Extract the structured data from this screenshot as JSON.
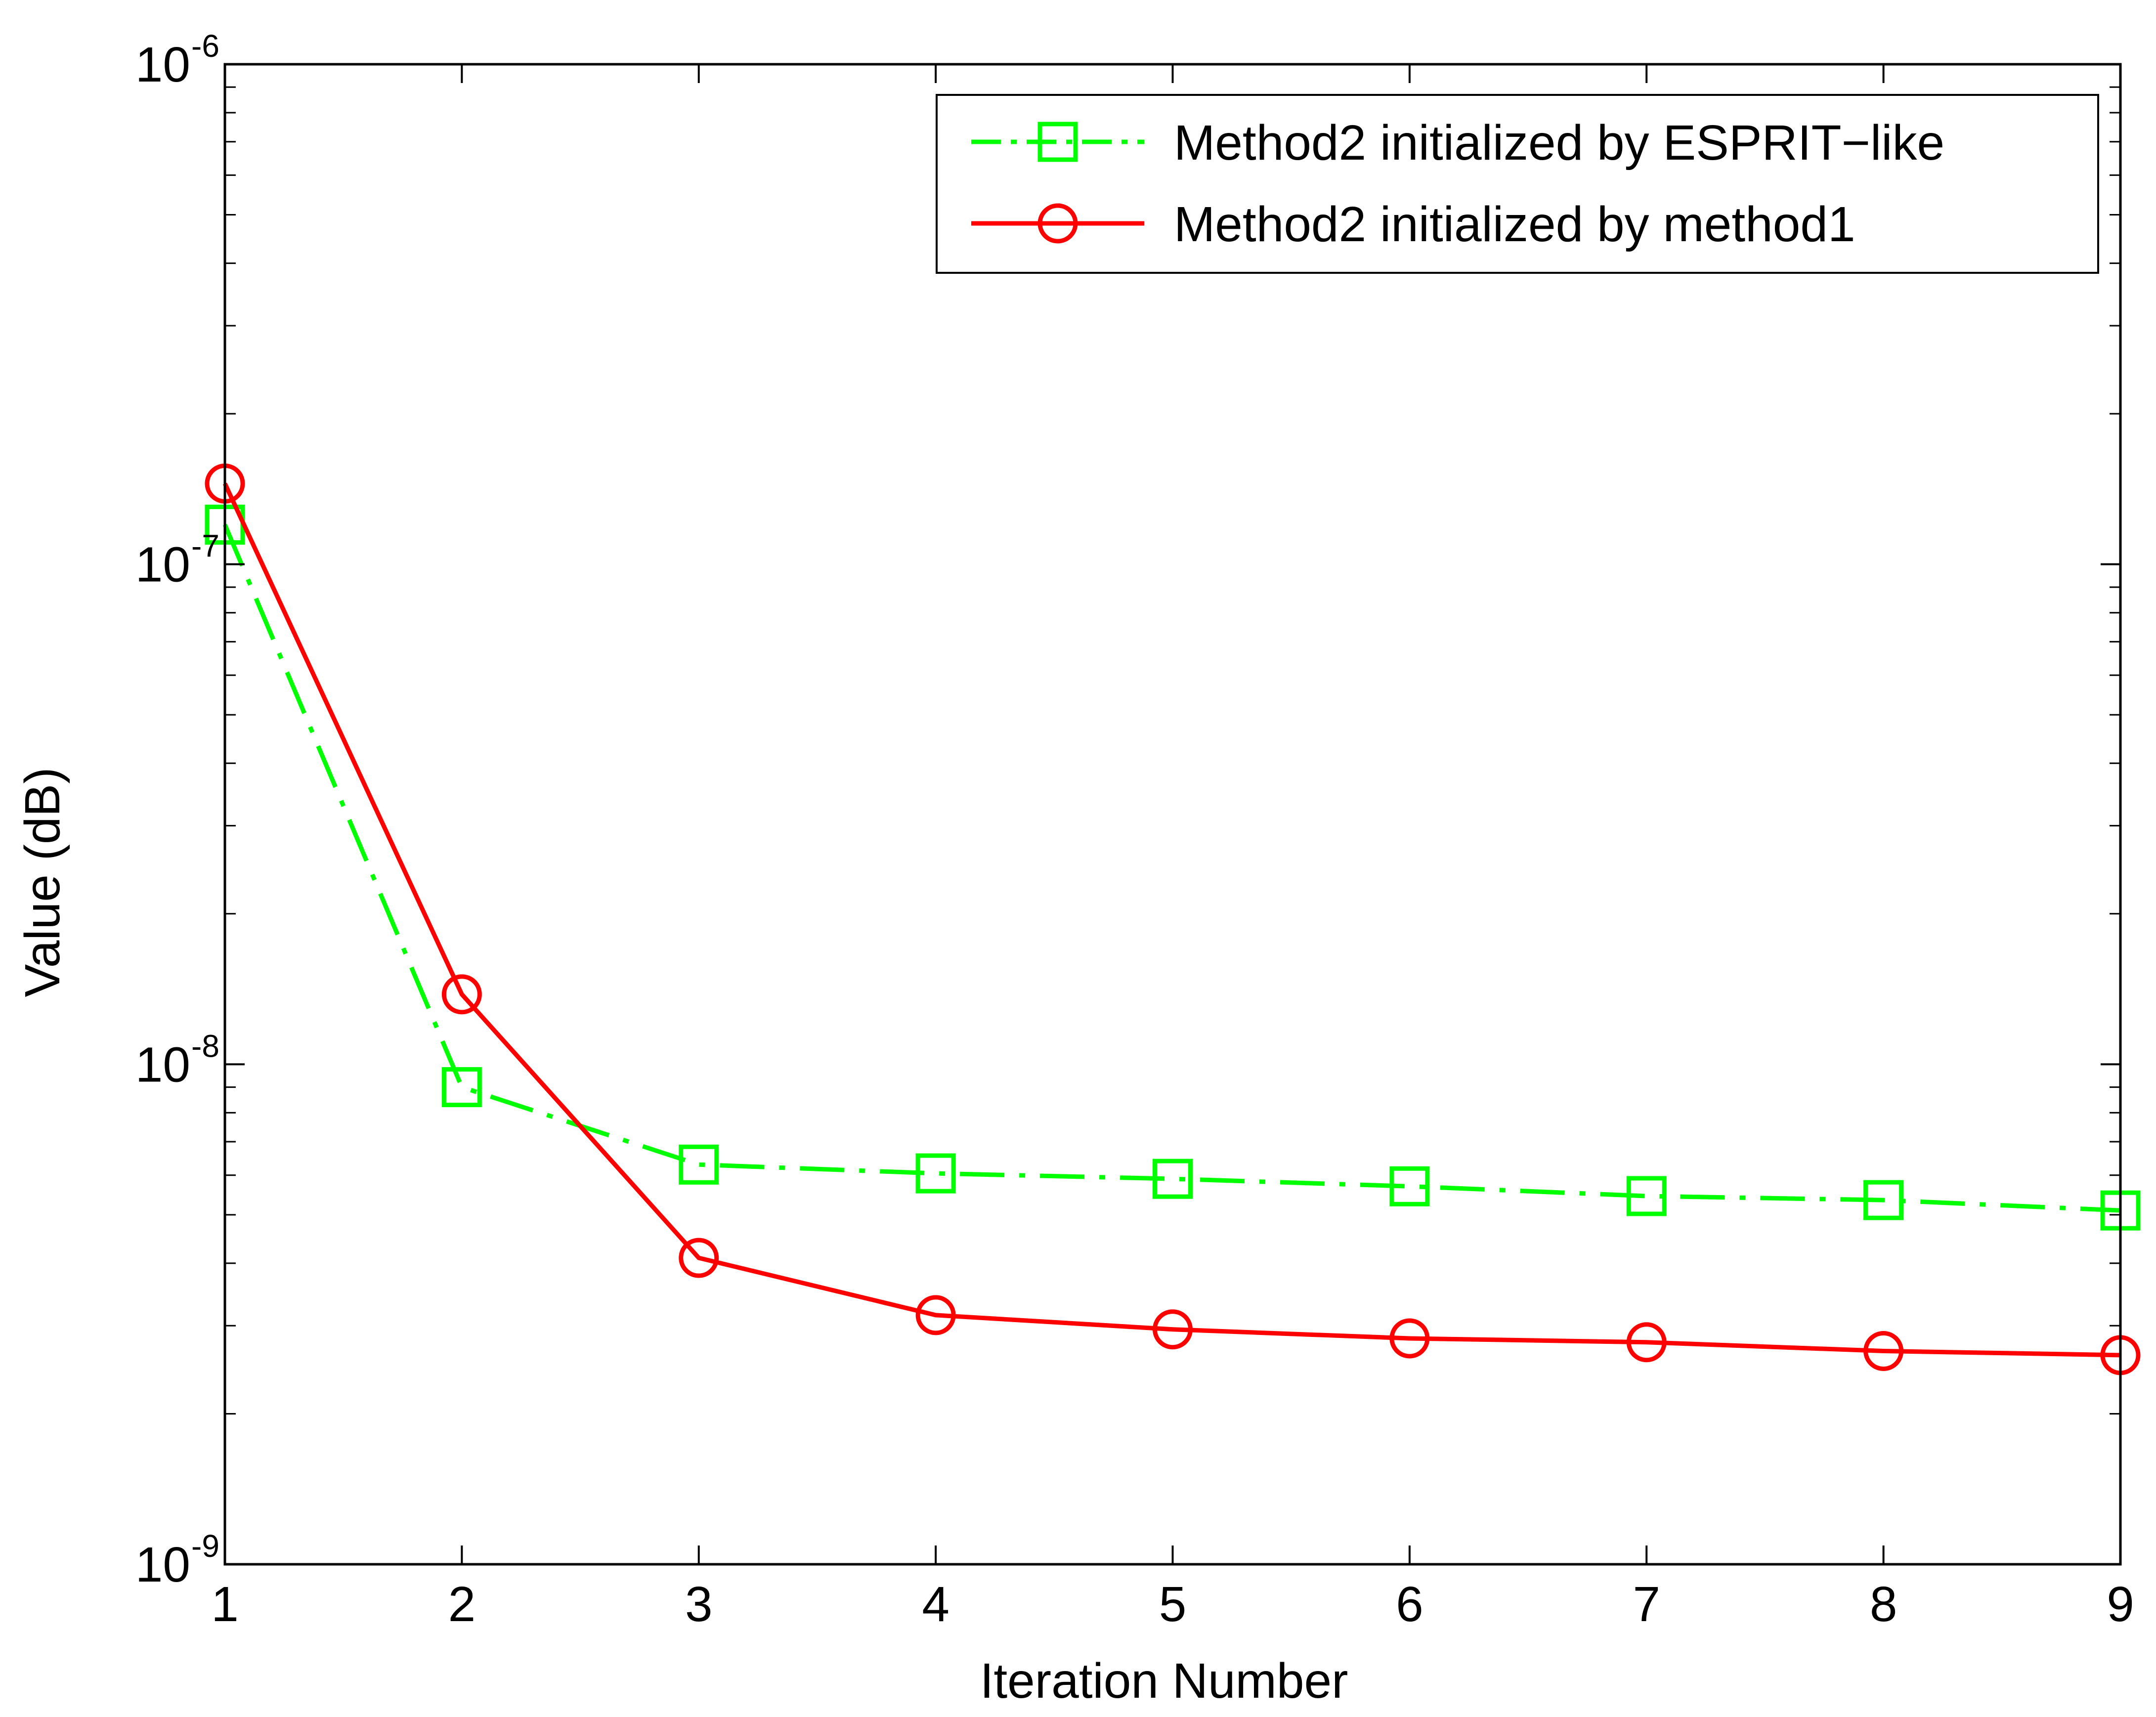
{
  "chart_data": {
    "type": "line",
    "xlabel": "Iteration Number",
    "ylabel": "Value (dB)",
    "xlim": [
      1,
      9
    ],
    "ylim": [
      1e-09,
      1e-06
    ],
    "yscale": "log",
    "grid": false,
    "legend_position": "top-right",
    "x": [
      1,
      2,
      3,
      4,
      5,
      6,
      7,
      8,
      9
    ],
    "x_tick_labels": [
      "1",
      "2",
      "3",
      "4",
      "5",
      "6",
      "7",
      "8",
      "9"
    ],
    "y_tick_labels": [
      {
        "base": "10",
        "exp": "-6",
        "value": 1e-06
      },
      {
        "base": "10",
        "exp": "-7",
        "value": 1e-07
      },
      {
        "base": "10",
        "exp": "-8",
        "value": 1e-08
      },
      {
        "base": "10",
        "exp": "-9",
        "value": 1e-09
      }
    ],
    "series": [
      {
        "name": "Method2 initialized by ESPRIT−like",
        "color": "#00ff00",
        "line_style": "dash-dot",
        "marker": "square",
        "values": [
          1.2e-07,
          9e-09,
          6.3e-09,
          6.05e-09,
          5.9e-09,
          5.7e-09,
          5.45e-09,
          5.35e-09,
          5.1e-09
        ]
      },
      {
        "name": "Method2 initialized by method1",
        "color": "#ff0000",
        "line_style": "solid",
        "marker": "circle",
        "values": [
          1.45e-07,
          1.38e-08,
          4.1e-09,
          3.15e-09,
          2.95e-09,
          2.83e-09,
          2.78e-09,
          2.67e-09,
          2.62e-09
        ]
      }
    ]
  }
}
